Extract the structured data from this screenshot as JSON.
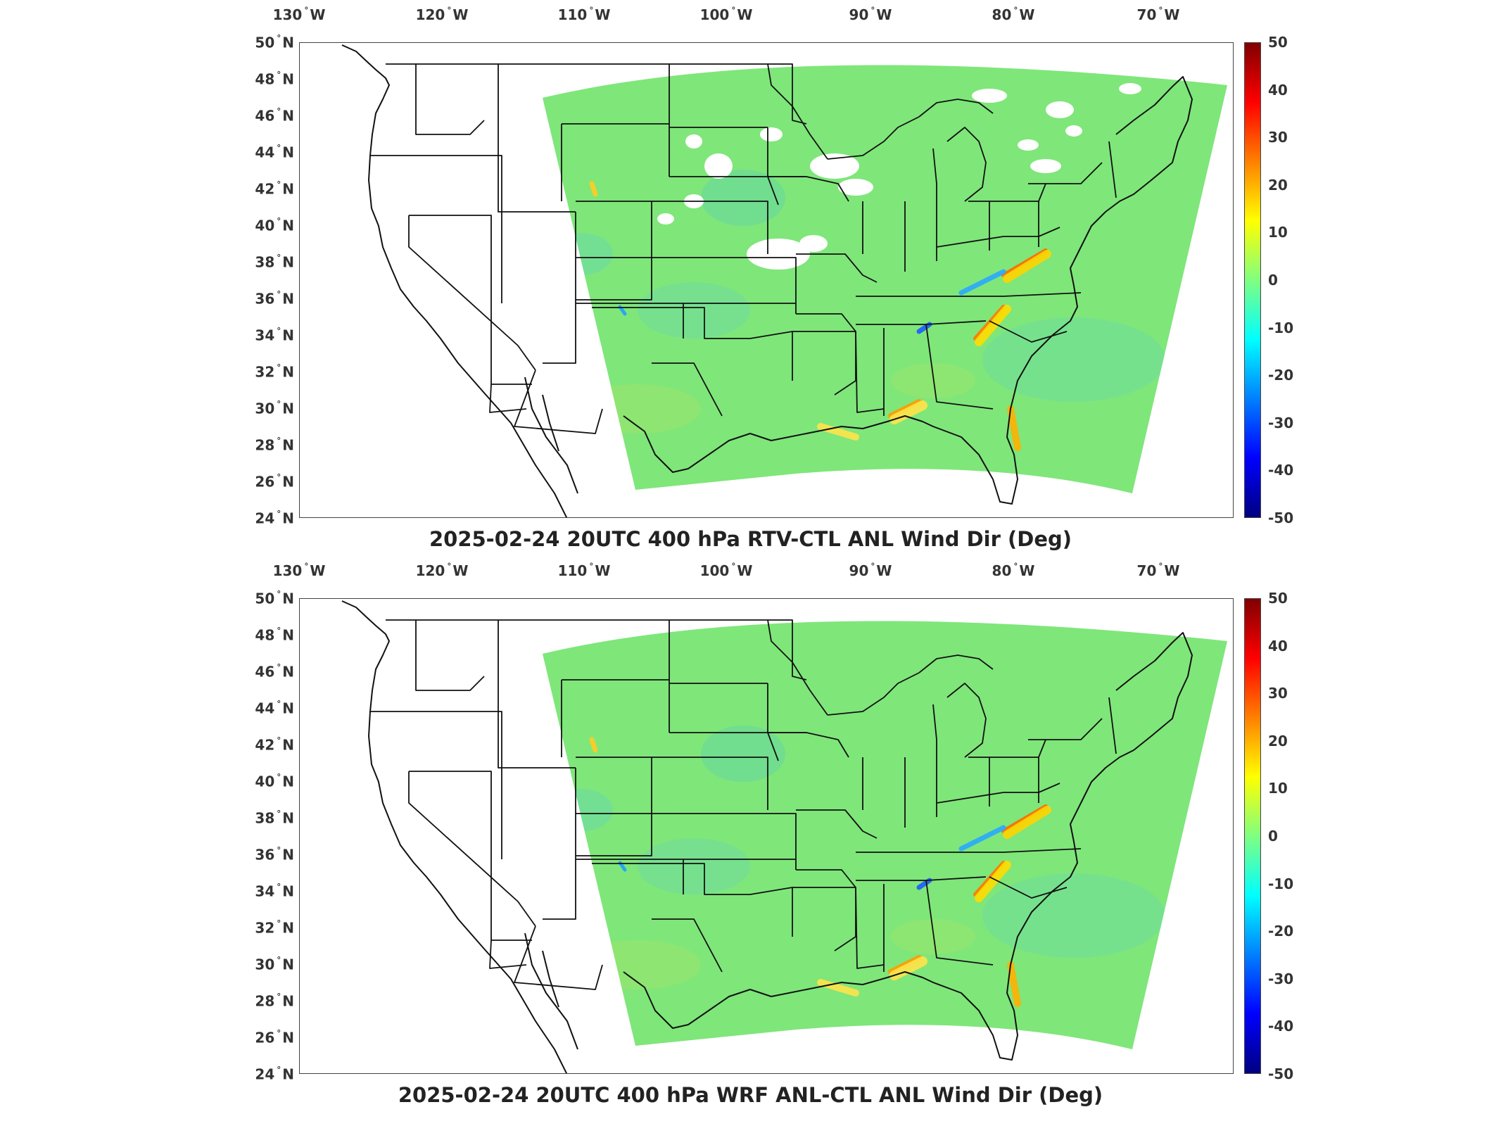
{
  "figures": [
    {
      "title": "2025-02-24 20UTC 400 hPa RTV-CTL ANL Wind Dir (Deg)",
      "data_void_areas": true
    },
    {
      "title": "2025-02-24 20UTC 400 hPa WRF ANL-CTL ANL Wind Dir (Deg)",
      "data_void_areas": false
    }
  ],
  "lon_labels": [
    {
      "deg": "130",
      "hem": "W"
    },
    {
      "deg": "120",
      "hem": "W"
    },
    {
      "deg": "110",
      "hem": "W"
    },
    {
      "deg": "100",
      "hem": "W"
    },
    {
      "deg": "90",
      "hem": "W"
    },
    {
      "deg": "80",
      "hem": "W"
    },
    {
      "deg": "70",
      "hem": "W"
    }
  ],
  "lat_labels": [
    {
      "deg": "50",
      "hem": "N"
    },
    {
      "deg": "48",
      "hem": "N"
    },
    {
      "deg": "46",
      "hem": "N"
    },
    {
      "deg": "44",
      "hem": "N"
    },
    {
      "deg": "42",
      "hem": "N"
    },
    {
      "deg": "40",
      "hem": "N"
    },
    {
      "deg": "38",
      "hem": "N"
    },
    {
      "deg": "36",
      "hem": "N"
    },
    {
      "deg": "34",
      "hem": "N"
    },
    {
      "deg": "32",
      "hem": "N"
    },
    {
      "deg": "30",
      "hem": "N"
    },
    {
      "deg": "28",
      "hem": "N"
    },
    {
      "deg": "26",
      "hem": "N"
    },
    {
      "deg": "24",
      "hem": "N"
    }
  ],
  "colorbar": {
    "ticks": [
      "50",
      "40",
      "30",
      "20",
      "10",
      "0",
      "-10",
      "-20",
      "-30",
      "-40",
      "-50"
    ],
    "colormap": "jet",
    "stops": [
      "#800000",
      "#ff0000",
      "#ff8000",
      "#ffff00",
      "#80ff80",
      "#00ffff",
      "#0080ff",
      "#0000ff",
      "#000080"
    ],
    "field_color": "#7fe67a"
  }
}
